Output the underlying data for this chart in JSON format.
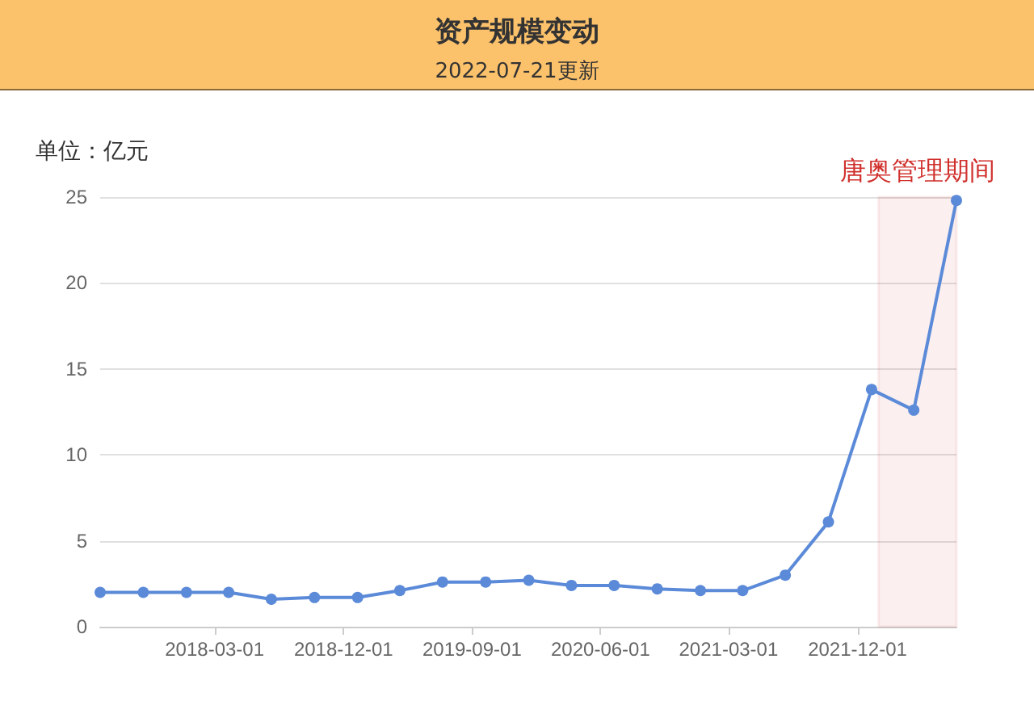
{
  "chart_data": {
    "type": "line",
    "title": "资产规模变动",
    "subtitle": "2022-07-21更新",
    "ylabel": "单位：亿元",
    "x": [
      "2017-06-30",
      "2017-09-30",
      "2017-12-31",
      "2018-03-31",
      "2018-06-30",
      "2018-09-30",
      "2018-12-31",
      "2019-03-31",
      "2019-06-30",
      "2019-09-30",
      "2019-12-31",
      "2020-03-31",
      "2020-06-30",
      "2020-09-30",
      "2020-12-31",
      "2021-03-31",
      "2021-06-30",
      "2021-09-30",
      "2021-12-31",
      "2022-03-31",
      "2022-06-30"
    ],
    "series": [
      {
        "color": "#5b8ad8",
        "values": [
          2.0,
          2.0,
          2.0,
          2.0,
          1.6,
          1.7,
          1.7,
          2.1,
          2.6,
          2.6,
          2.7,
          2.4,
          2.4,
          2.2,
          2.1,
          2.1,
          3.0,
          6.1,
          13.8,
          12.6,
          24.8
        ]
      }
    ],
    "xlim": [
      "2017-06-30",
      "2022-06-30"
    ],
    "xticks": [
      "2018-03-01",
      "2018-12-01",
      "2019-09-01",
      "2020-06-01",
      "2021-03-01",
      "2021-12-01"
    ],
    "ylim": [
      0,
      25
    ],
    "yticks": [
      0,
      5,
      10,
      15,
      20,
      25
    ],
    "bands": [
      {
        "axis": "x",
        "from": "2022-01-15",
        "to": "2022-06-30",
        "label": "唐奥管理期间",
        "color": "#d0312d"
      }
    ],
    "grid": "y",
    "marker": "circle",
    "line_style": "solid"
  }
}
